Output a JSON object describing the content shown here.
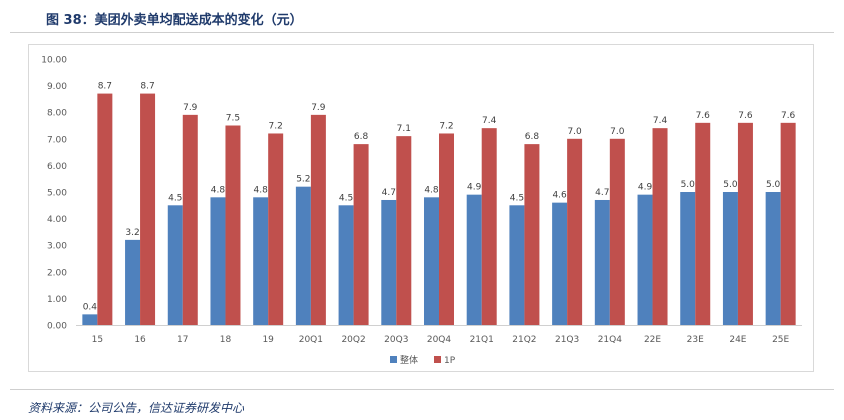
{
  "figure": {
    "title": "图 38：美团外卖单均配送成本的变化（元）",
    "source": "资料来源：公司公告，信达证券研发中心"
  },
  "chart_data": {
    "type": "bar",
    "categories": [
      "15",
      "16",
      "17",
      "18",
      "19",
      "20Q1",
      "20Q2",
      "20Q3",
      "20Q4",
      "21Q1",
      "21Q2",
      "21Q3",
      "21Q4",
      "22E",
      "23E",
      "24E",
      "25E"
    ],
    "series": [
      {
        "name": "整体",
        "color": "#4f81bd",
        "values": [
          0.4,
          3.2,
          4.5,
          4.8,
          4.8,
          5.2,
          4.5,
          4.7,
          4.8,
          4.9,
          4.5,
          4.6,
          4.7,
          4.9,
          5.0,
          5.0,
          5.0
        ]
      },
      {
        "name": "1P",
        "color": "#c0504d",
        "values": [
          8.7,
          8.7,
          7.9,
          7.5,
          7.2,
          7.9,
          6.8,
          7.1,
          7.2,
          7.4,
          6.8,
          7.0,
          7.0,
          7.4,
          7.6,
          7.6,
          7.6
        ]
      }
    ],
    "y_ticks": [
      "0.00",
      "1.00",
      "2.00",
      "3.00",
      "4.00",
      "5.00",
      "6.00",
      "7.00",
      "8.00",
      "9.00",
      "10.00"
    ],
    "ylim": [
      0,
      10
    ],
    "grid": false,
    "legend_position": "bottom-center"
  }
}
